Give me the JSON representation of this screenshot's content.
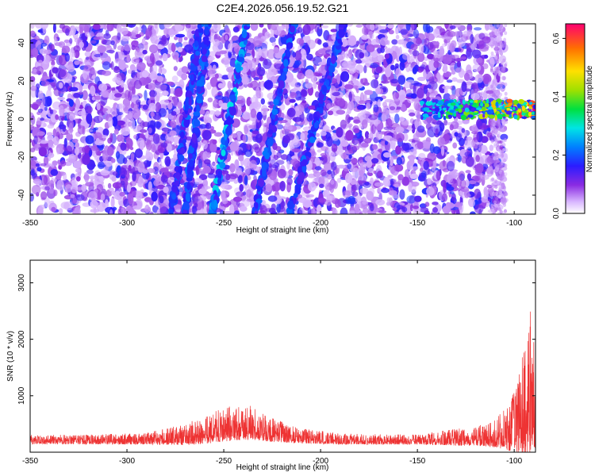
{
  "title": "C2E4.2026.056.19.52.G21",
  "chart_data": [
    {
      "type": "heatmap",
      "xlabel": "Height of straight line (km)",
      "ylabel": "Frequency (Hz)",
      "xlim": [
        -350,
        -89
      ],
      "ylim": [
        -50,
        50
      ],
      "x_ticks": [
        "-350",
        "-300",
        "-250",
        "-200",
        "-150",
        "-100"
      ],
      "y_ticks": [
        "-40",
        "-20",
        "0",
        "20",
        "40"
      ],
      "colorbar": {
        "label": "Normalized spectral amplitude",
        "range": [
          0.0,
          0.65
        ],
        "ticks": [
          "0.0",
          "0.2",
          "0.4",
          "0.6"
        ]
      },
      "features": {
        "background_speckle_x_range": [
          -350,
          -105
        ],
        "diagonal_streaks": [
          {
            "x_at_bottom": -256,
            "x_at_top": -238
          },
          {
            "x_at_bottom": -277,
            "x_at_top": -262
          },
          {
            "x_at_bottom": -234,
            "x_at_top": -214
          },
          {
            "x_at_bottom": -216,
            "x_at_top": -188
          },
          {
            "x_at_bottom": -270,
            "x_at_top": -258
          }
        ],
        "horizontal_band": {
          "x_range": [
            -148,
            -89
          ],
          "frequency": 5,
          "peak_amplitude": 0.65
        }
      }
    },
    {
      "type": "line",
      "xlabel": "Height of straight line (km)",
      "ylabel": "SNR (10 * v/v)",
      "xlim": [
        -350,
        -89
      ],
      "ylim": [
        0,
        3400
      ],
      "x_ticks": [
        "-350",
        "-300",
        "-250",
        "-200",
        "-150",
        "-100"
      ],
      "y_ticks": [
        "1000",
        "2000",
        "3000"
      ],
      "color": "#ee3333",
      "envelope": {
        "x": [
          -350,
          -320,
          -290,
          -270,
          -260,
          -250,
          -240,
          -235,
          -225,
          -210,
          -190,
          -170,
          -150,
          -130,
          -120,
          -110,
          -105,
          -100,
          -97,
          -94,
          -92,
          -90,
          -89
        ],
        "base": [
          200,
          200,
          210,
          260,
          320,
          400,
          450,
          430,
          330,
          250,
          210,
          200,
          200,
          220,
          230,
          260,
          300,
          380,
          500,
          700,
          900,
          800,
          700
        ],
        "spread": [
          160,
          170,
          200,
          380,
          500,
          600,
          650,
          600,
          420,
          260,
          200,
          180,
          180,
          300,
          330,
          500,
          700,
          1100,
          1600,
          2200,
          2600,
          2000,
          1800
        ]
      }
    }
  ]
}
